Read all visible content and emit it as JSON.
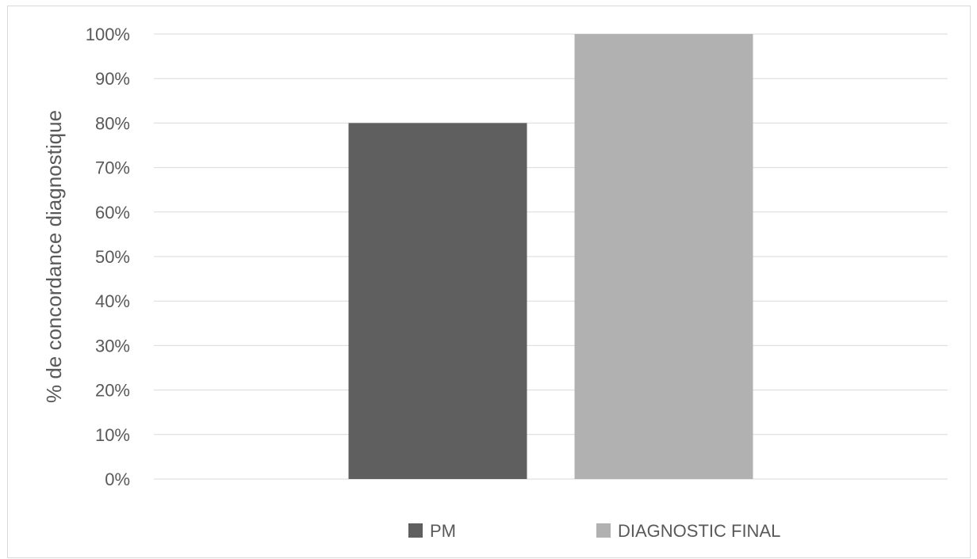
{
  "chart_data": {
    "type": "bar",
    "ylabel": "% de concordance diagnostique",
    "ylim": [
      0,
      100
    ],
    "y_ticks": [
      "0%",
      "10%",
      "20%",
      "30%",
      "40%",
      "50%",
      "60%",
      "70%",
      "80%",
      "90%",
      "100%"
    ],
    "grid": true,
    "legend_position": "bottom",
    "series": [
      {
        "name": "PM",
        "values": [
          80
        ],
        "color": "#5f5f5f"
      },
      {
        "name": "DIAGNOSTIC FINAL",
        "values": [
          100
        ],
        "color": "#b1b1b1"
      }
    ]
  }
}
